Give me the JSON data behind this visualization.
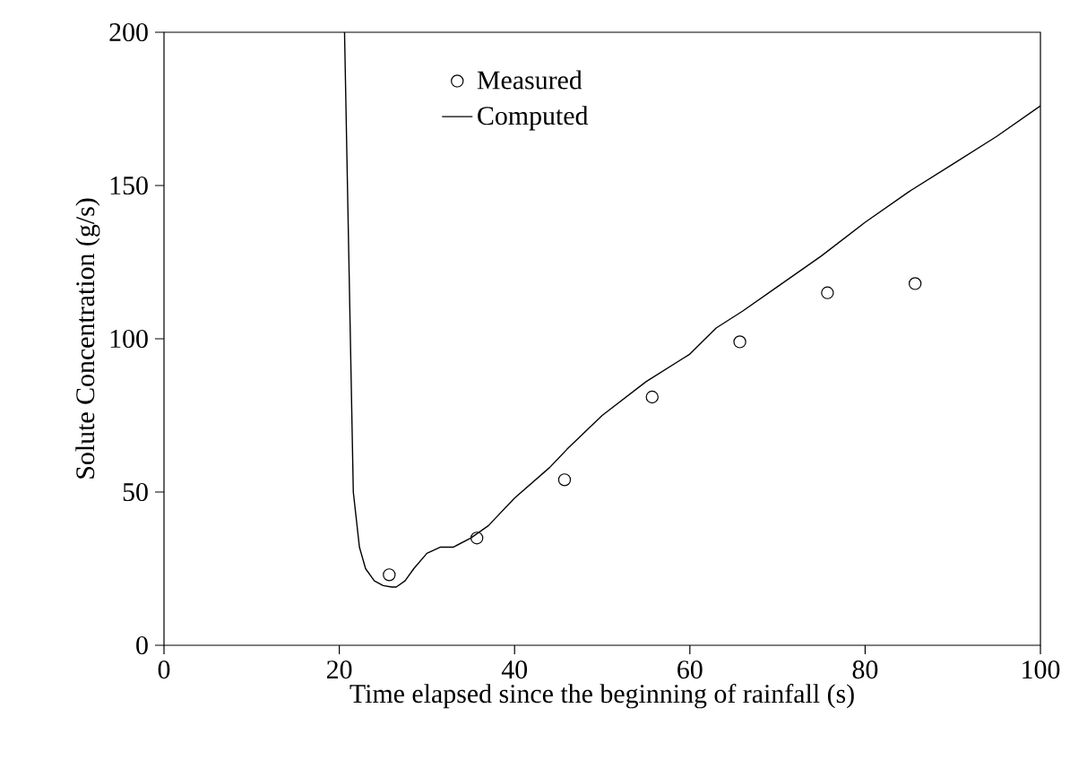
{
  "chart_data": {
    "type": "line",
    "xlabel": "Time elapsed since the beginning of rainfall (s)",
    "ylabel": "Solute Concentration (g/s)",
    "xlim": [
      0,
      100
    ],
    "ylim": [
      0,
      200
    ],
    "xticks": [
      0,
      20,
      40,
      60,
      80,
      100
    ],
    "yticks": [
      0,
      50,
      100,
      150,
      200
    ],
    "grid": false,
    "legend": "top",
    "series": [
      {
        "name": "Measured",
        "type": "scatter",
        "marker": "circle",
        "color": "#000000",
        "x": [
          25.7,
          35.7,
          45.7,
          55.7,
          65.7,
          75.7,
          85.7
        ],
        "values": [
          23,
          35,
          54,
          81,
          99,
          115,
          118
        ]
      },
      {
        "name": "Computed",
        "marker": "none",
        "line_style": "solid",
        "color": "#000000",
        "x": [
          20.6,
          21,
          21.6,
          22.3,
          23,
          24,
          25,
          26,
          26.5,
          27.5,
          28.5,
          30,
          31.5,
          33,
          35,
          37,
          40,
          42,
          44,
          46,
          50,
          55,
          60,
          63,
          66,
          70,
          75,
          80,
          85,
          90,
          95,
          100
        ],
        "values": [
          200,
          140,
          50,
          32,
          25,
          21,
          19.5,
          19,
          19,
          21,
          25,
          30,
          32,
          32,
          35,
          39,
          48,
          53,
          58,
          64,
          75,
          86,
          95,
          103.5,
          109,
          117,
          127,
          138,
          148,
          157,
          166,
          176
        ]
      }
    ]
  }
}
